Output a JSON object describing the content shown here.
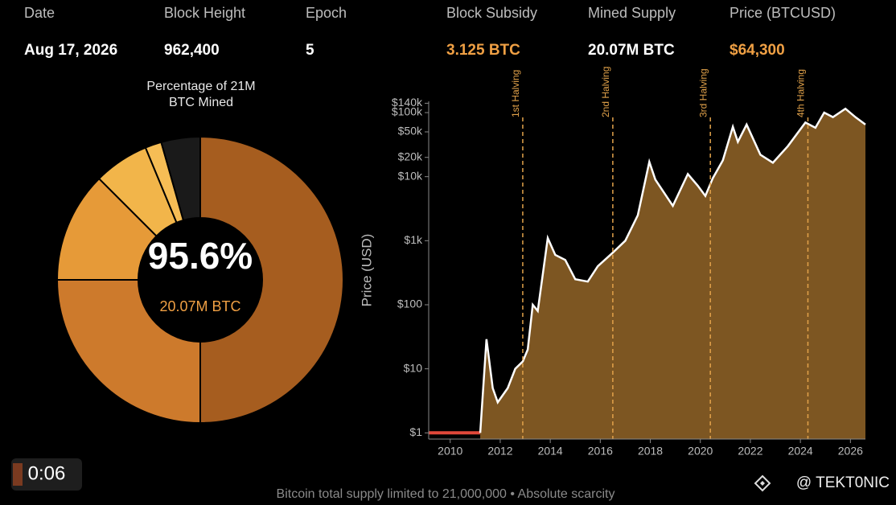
{
  "header": [
    {
      "label": "Date",
      "value": "Aug 17, 2026"
    },
    {
      "label": "Block Height",
      "value": "962,400"
    },
    {
      "label": "Epoch",
      "value": "5"
    },
    {
      "label": "Block Subsidy",
      "value": "3.125 BTC"
    },
    {
      "label": "Mined Supply",
      "value": "20.07M BTC"
    },
    {
      "label": "Price (BTCUSD)",
      "value": "$64,300"
    }
  ],
  "chart_data": [
    {
      "type": "pie",
      "title": "Percentage of 21M BTC Mined",
      "values": [
        50,
        25,
        12.5,
        6.25,
        1.85,
        4.4
      ],
      "colors": [
        "#a65d1f",
        "#cd7a2c",
        "#e69a38",
        "#f2b54a",
        "#f6bd55",
        "#1a1a1a"
      ],
      "center_label": "95.6%",
      "center_sublabel": "20.07M BTC"
    },
    {
      "type": "area",
      "ylabel": "Price (USD)",
      "log_scale": true,
      "xlim": [
        2009.14,
        2026.6
      ],
      "xticks": [
        2010,
        2012,
        2014,
        2016,
        2018,
        2020,
        2022,
        2024,
        2026
      ],
      "ylim": [
        0.8,
        150000
      ],
      "yticks": [
        {
          "value": 1,
          "label": "$1"
        },
        {
          "value": 10,
          "label": "$10"
        },
        {
          "value": 100,
          "label": "$100"
        },
        {
          "value": 1000,
          "label": "$1k"
        },
        {
          "value": 10000,
          "label": "$10k"
        },
        {
          "value": 20000,
          "label": "$20k"
        },
        {
          "value": 50000,
          "label": "$50k"
        },
        {
          "value": 100000,
          "label": "$100k"
        },
        {
          "value": 140000,
          "label": "$140k"
        }
      ],
      "halvings": [
        {
          "x": 2012.9,
          "label": "1st Halving"
        },
        {
          "x": 2016.5,
          "label": "2nd Halving"
        },
        {
          "x": 2020.4,
          "label": "3rd Halving"
        },
        {
          "x": 2024.3,
          "label": "4th Halving"
        }
      ],
      "series": [
        {
          "color": "#e0483a",
          "x": [
            2009.14,
            2011.2
          ],
          "values": [
            1,
            1
          ]
        },
        {
          "color": "#ffffff",
          "fill": "#7d5622",
          "x": [
            2011.2,
            2011.45,
            2011.7,
            2011.9,
            2012.3,
            2012.6,
            2012.9,
            2013.1,
            2013.3,
            2013.5,
            2013.9,
            2014.2,
            2014.6,
            2015.0,
            2015.5,
            2015.9,
            2016.5,
            2017.0,
            2017.5,
            2017.96,
            2018.2,
            2018.9,
            2019.5,
            2019.9,
            2020.2,
            2020.5,
            2020.9,
            2021.3,
            2021.5,
            2021.85,
            2022.4,
            2022.9,
            2023.5,
            2024.2,
            2024.6,
            2024.95,
            2025.3,
            2025.8,
            2026.2,
            2026.6
          ],
          "values": [
            1,
            29,
            5,
            3,
            5,
            10,
            13,
            20,
            100,
            80,
            1100,
            600,
            500,
            250,
            230,
            400,
            650,
            1000,
            2500,
            17000,
            9000,
            3500,
            11000,
            7200,
            5000,
            9500,
            18000,
            60000,
            35000,
            65000,
            22000,
            16500,
            30000,
            70000,
            58000,
            100000,
            85000,
            115000,
            85000,
            65000
          ]
        }
      ]
    }
  ],
  "footer": "Bitcoin total supply limited to 21,000,000 • Absolute scarcity",
  "watermark": "@ TEKT0NIC",
  "player": {
    "timestamp": "0:06"
  }
}
